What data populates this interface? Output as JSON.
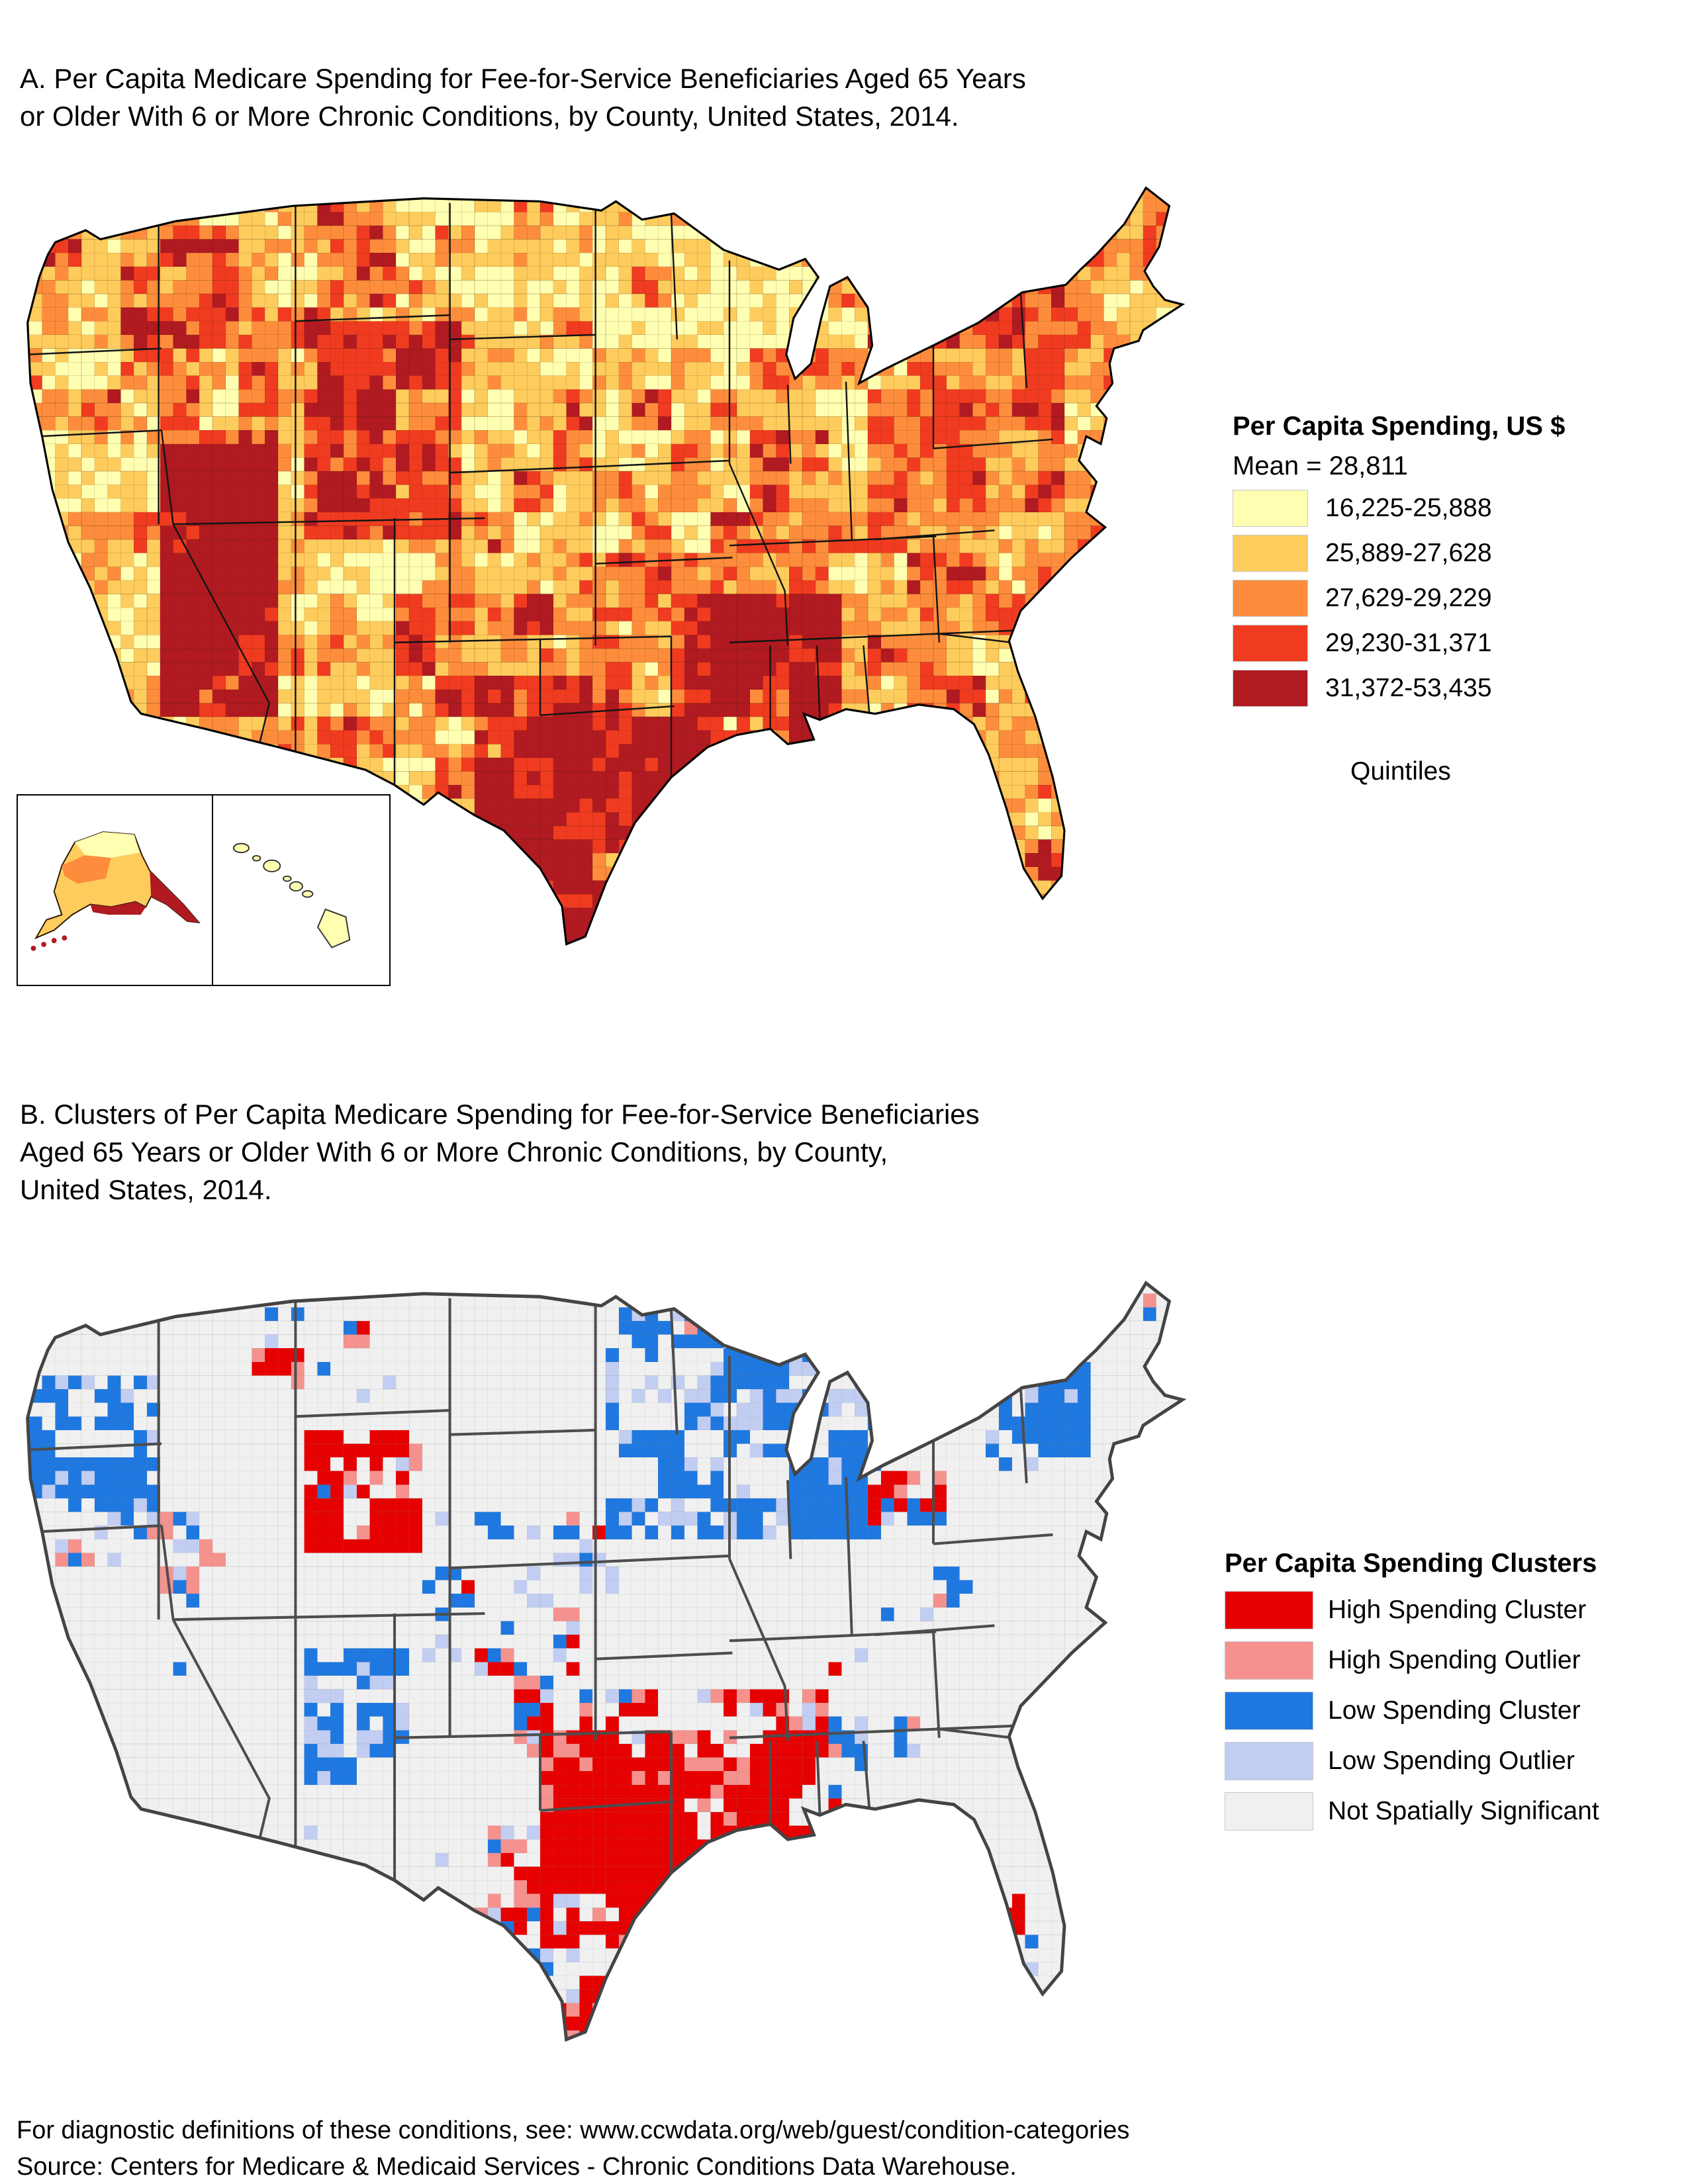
{
  "panel_a": {
    "title_line1": "A. Per Capita Medicare Spending for Fee-for-Service Beneficiaries Aged 65 Years",
    "title_line2": "or Older With 6 or More Chronic Conditions, by County, United States, 2014.",
    "legend": {
      "title": "Per Capita Spending, US $",
      "subtitle": "Mean = 28,811",
      "items": [
        {
          "label": "16,225-25,888",
          "color": "#FFFFB2"
        },
        {
          "label": "25,889-27,628",
          "color": "#FECC5C"
        },
        {
          "label": "27,629-29,229",
          "color": "#FD8D3C"
        },
        {
          "label": "29,230-31,371",
          "color": "#F03B20"
        },
        {
          "label": "31,372-53,435",
          "color": "#B11A21"
        }
      ],
      "footnote": "Quintiles"
    }
  },
  "panel_b": {
    "title_line1": "B. Clusters of Per Capita Medicare Spending for Fee-for-Service Beneficiaries",
    "title_line2": "Aged 65 Years or Older With 6 or More Chronic Conditions, by County,",
    "title_line3": "United States, 2014.",
    "legend": {
      "title": "Per Capita Spending Clusters",
      "items": [
        {
          "label": "High Spending Cluster",
          "color": "#E60000"
        },
        {
          "label": "High Spending Outlier",
          "color": "#F5928E"
        },
        {
          "label": "Low Spending Cluster",
          "color": "#1E78E0"
        },
        {
          "label": "Low Spending Outlier",
          "color": "#C2CDF2"
        },
        {
          "label": "Not Spatially Significant",
          "color": "#F0F0F0"
        }
      ]
    }
  },
  "footer": {
    "line1": "For diagnostic definitions of these conditions, see: www.ccwdata.org/web/guest/condition-categories",
    "line2": "Source: Centers for Medicare & Medicaid Services - Chronic Conditions Data Warehouse."
  }
}
